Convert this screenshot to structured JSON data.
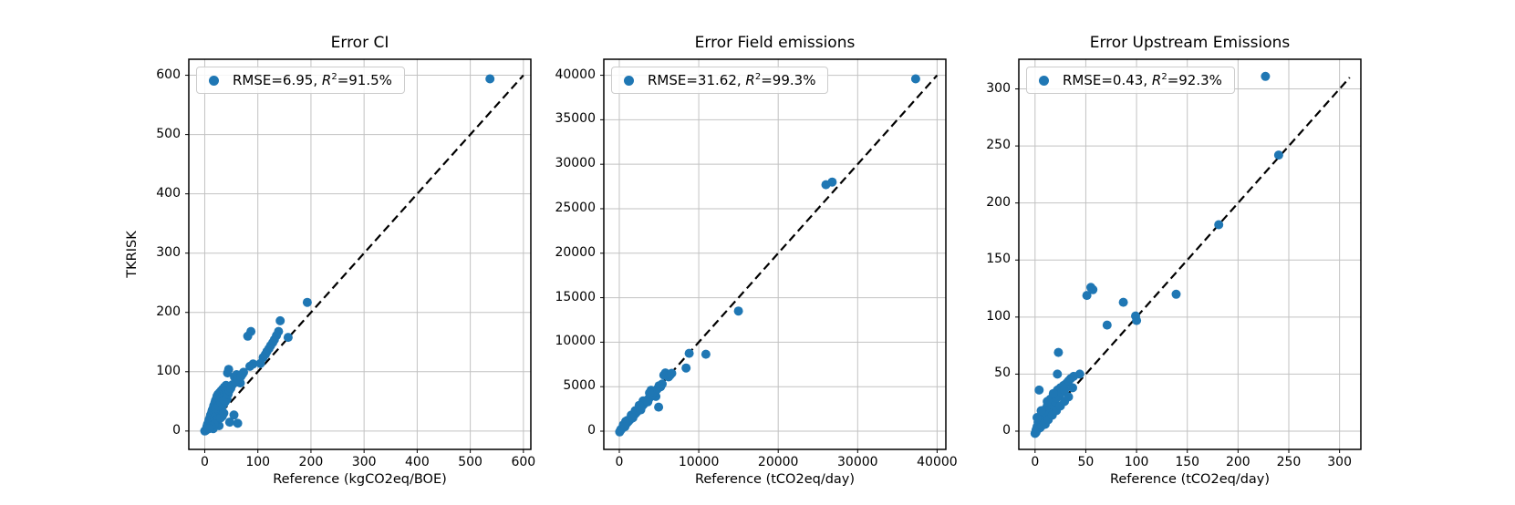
{
  "figure": {
    "background": "#ffffff",
    "accent_color": "#1f77b4",
    "grid_color": "#c2c2c2",
    "spine_color": "#000000",
    "identity_line_color": "#000000"
  },
  "chart_data": [
    {
      "type": "scatter",
      "title": "Error CI",
      "xlabel": "Reference (kgCO2eq/BOE)",
      "ylabel": "TKRISK",
      "legend": "RMSE=6.95, R²=91.5%",
      "grid": true,
      "legend_position": "upper left",
      "xlim": [
        -30,
        614
      ],
      "ylim": [
        -31,
        627
      ],
      "xticks": [
        0,
        100,
        200,
        300,
        400,
        500,
        600
      ],
      "yticks": [
        0,
        100,
        200,
        300,
        400,
        500,
        600
      ],
      "identity_line": [
        0,
        600
      ],
      "points": [
        [
          537,
          594
        ],
        [
          193,
          217
        ],
        [
          142,
          186
        ],
        [
          157,
          158
        ],
        [
          139,
          168
        ],
        [
          135,
          161
        ],
        [
          131,
          154
        ],
        [
          128,
          149
        ],
        [
          124,
          144
        ],
        [
          121,
          139
        ],
        [
          117,
          134
        ],
        [
          114,
          129
        ],
        [
          110,
          124
        ],
        [
          87,
          168
        ],
        [
          81,
          160
        ],
        [
          105,
          114
        ],
        [
          91,
          113
        ],
        [
          85,
          109
        ],
        [
          73,
          99
        ],
        [
          45,
          104
        ],
        [
          43,
          98
        ],
        [
          62,
          86
        ],
        [
          67,
          81
        ],
        [
          56,
          91
        ],
        [
          60,
          95
        ],
        [
          50,
          76
        ],
        [
          62,
          13
        ],
        [
          47,
          15
        ],
        [
          55,
          27
        ],
        [
          27,
          9
        ],
        [
          16,
          4
        ],
        [
          0,
          0
        ],
        [
          2,
          1
        ],
        [
          3,
          3
        ],
        [
          4,
          7
        ],
        [
          5,
          11
        ],
        [
          6,
          5
        ],
        [
          7,
          15
        ],
        [
          8,
          19
        ],
        [
          9,
          9
        ],
        [
          10,
          23
        ],
        [
          11,
          27
        ],
        [
          12,
          14
        ],
        [
          13,
          31
        ],
        [
          14,
          35
        ],
        [
          15,
          18
        ],
        [
          16,
          39
        ],
        [
          17,
          43
        ],
        [
          18,
          22
        ],
        [
          19,
          47
        ],
        [
          20,
          51
        ],
        [
          21,
          26
        ],
        [
          22,
          55
        ],
        [
          23,
          59
        ],
        [
          24,
          30
        ],
        [
          25,
          62
        ],
        [
          26,
          47
        ],
        [
          27,
          34
        ],
        [
          28,
          65
        ],
        [
          29,
          52
        ],
        [
          30,
          38
        ],
        [
          31,
          68
        ],
        [
          32,
          56
        ],
        [
          33,
          42
        ],
        [
          34,
          71
        ],
        [
          35,
          60
        ],
        [
          36,
          46
        ],
        [
          37,
          74
        ],
        [
          38,
          64
        ],
        [
          39,
          50
        ],
        [
          40,
          77
        ],
        [
          41,
          67
        ],
        [
          42,
          54
        ],
        [
          33,
          25
        ],
        [
          25,
          20
        ],
        [
          18,
          12
        ],
        [
          12,
          8
        ],
        [
          8,
          4
        ],
        [
          30,
          22
        ],
        [
          36,
          30
        ],
        [
          21,
          38
        ],
        [
          26,
          42
        ],
        [
          31,
          48
        ],
        [
          36,
          52
        ],
        [
          41,
          58
        ],
        [
          44,
          62
        ],
        [
          46,
          68
        ],
        [
          49,
          72
        ],
        [
          52,
          78
        ],
        [
          58,
          82
        ],
        [
          63,
          88
        ],
        [
          68,
          92
        ],
        [
          71,
          96
        ]
      ]
    },
    {
      "type": "scatter",
      "title": "Error Field emissions",
      "xlabel": "Reference (tCO2eq/day)",
      "ylabel": "",
      "legend": "RMSE=31.62, R²=99.3%",
      "grid": true,
      "legend_position": "upper left",
      "xlim": [
        -1950,
        41100
      ],
      "ylim": [
        -2050,
        41800
      ],
      "xticks": [
        0,
        10000,
        20000,
        30000,
        40000
      ],
      "yticks": [
        0,
        5000,
        10000,
        15000,
        20000,
        25000,
        30000,
        35000,
        40000
      ],
      "identity_line": [
        0,
        40000
      ],
      "points": [
        [
          37300,
          39600
        ],
        [
          26800,
          28000
        ],
        [
          26000,
          27700
        ],
        [
          15000,
          13500
        ],
        [
          10900,
          8650
        ],
        [
          8800,
          8750
        ],
        [
          8400,
          7100
        ],
        [
          4950,
          2700
        ],
        [
          4600,
          3900
        ],
        [
          5800,
          6550
        ],
        [
          5600,
          6300
        ],
        [
          150,
          100
        ],
        [
          300,
          250
        ],
        [
          450,
          400
        ],
        [
          600,
          550
        ],
        [
          750,
          700
        ],
        [
          900,
          850
        ],
        [
          1050,
          1000
        ],
        [
          1200,
          1150
        ],
        [
          1350,
          1300
        ],
        [
          1500,
          1450
        ],
        [
          1650,
          1600
        ],
        [
          1800,
          1750
        ],
        [
          1950,
          1900
        ],
        [
          2100,
          2050
        ],
        [
          2250,
          2200
        ],
        [
          2400,
          2350
        ],
        [
          2550,
          2500
        ],
        [
          2700,
          2650
        ],
        [
          2850,
          2800
        ],
        [
          3000,
          2950
        ],
        [
          3150,
          3100
        ],
        [
          3300,
          3250
        ],
        [
          3450,
          3400
        ],
        [
          3600,
          3550
        ],
        [
          3750,
          3700
        ],
        [
          3900,
          3850
        ],
        [
          4050,
          4000
        ],
        [
          4200,
          4150
        ],
        [
          4350,
          4300
        ],
        [
          4500,
          4450
        ],
        [
          4650,
          4600
        ],
        [
          4800,
          4750
        ],
        [
          5000,
          5100
        ],
        [
          5200,
          5000
        ],
        [
          5400,
          5300
        ],
        [
          6000,
          6200
        ],
        [
          6200,
          6100
        ],
        [
          6400,
          6300
        ],
        [
          6600,
          6500
        ],
        [
          1000,
          1200
        ],
        [
          2000,
          2300
        ],
        [
          3000,
          3400
        ],
        [
          1500,
          1800
        ],
        [
          2500,
          2900
        ],
        [
          500,
          700
        ],
        [
          800,
          1100
        ],
        [
          4000,
          4600
        ],
        [
          3800,
          4300
        ],
        [
          700,
          500
        ],
        [
          1700,
          1500
        ],
        [
          2700,
          2400
        ],
        [
          3600,
          3300
        ],
        [
          200,
          180
        ],
        [
          50,
          -80
        ]
      ]
    },
    {
      "type": "scatter",
      "title": "Error Upstream Emissions",
      "xlabel": "Reference (tCO2eq/day)",
      "ylabel": "",
      "legend": "RMSE=0.43, R²=92.3%",
      "grid": true,
      "legend_position": "upper left",
      "xlim": [
        -16,
        321
      ],
      "ylim": [
        -16,
        326
      ],
      "xticks": [
        0,
        50,
        100,
        150,
        200,
        250,
        300
      ],
      "yticks": [
        0,
        50,
        100,
        150,
        200,
        250,
        300
      ],
      "identity_line": [
        0,
        310
      ],
      "points": [
        [
          227,
          311
        ],
        [
          240,
          242
        ],
        [
          181,
          181
        ],
        [
          139,
          120
        ],
        [
          55,
          126
        ],
        [
          57,
          124
        ],
        [
          51,
          119
        ],
        [
          87,
          113
        ],
        [
          99,
          101
        ],
        [
          100,
          97
        ],
        [
          71,
          93
        ],
        [
          23,
          69
        ],
        [
          22,
          50
        ],
        [
          44,
          50
        ],
        [
          4,
          36
        ],
        [
          37,
          38
        ],
        [
          15,
          28
        ],
        [
          1,
          1
        ],
        [
          2,
          4
        ],
        [
          3,
          2
        ],
        [
          3,
          8
        ],
        [
          4,
          6
        ],
        [
          5,
          10
        ],
        [
          5,
          3
        ],
        [
          6,
          13
        ],
        [
          7,
          8
        ],
        [
          8,
          16
        ],
        [
          9,
          11
        ],
        [
          10,
          19
        ],
        [
          10,
          6
        ],
        [
          11,
          14
        ],
        [
          12,
          22
        ],
        [
          13,
          17
        ],
        [
          14,
          25
        ],
        [
          15,
          20
        ],
        [
          16,
          28
        ],
        [
          17,
          23
        ],
        [
          18,
          31
        ],
        [
          19,
          26
        ],
        [
          20,
          33
        ],
        [
          21,
          29
        ],
        [
          22,
          36
        ],
        [
          24,
          31
        ],
        [
          25,
          38
        ],
        [
          26,
          34
        ],
        [
          28,
          40
        ],
        [
          29,
          36
        ],
        [
          31,
          42
        ],
        [
          33,
          44
        ],
        [
          35,
          46
        ],
        [
          38,
          48
        ],
        [
          7,
          5
        ],
        [
          9,
          7
        ],
        [
          13,
          10
        ],
        [
          17,
          14
        ],
        [
          21,
          18
        ],
        [
          25,
          22
        ],
        [
          29,
          26
        ],
        [
          33,
          30
        ],
        [
          2,
          12
        ],
        [
          6,
          18
        ],
        [
          12,
          26
        ],
        [
          18,
          33
        ],
        [
          0,
          -2
        ],
        [
          1,
          -1
        ]
      ]
    }
  ]
}
